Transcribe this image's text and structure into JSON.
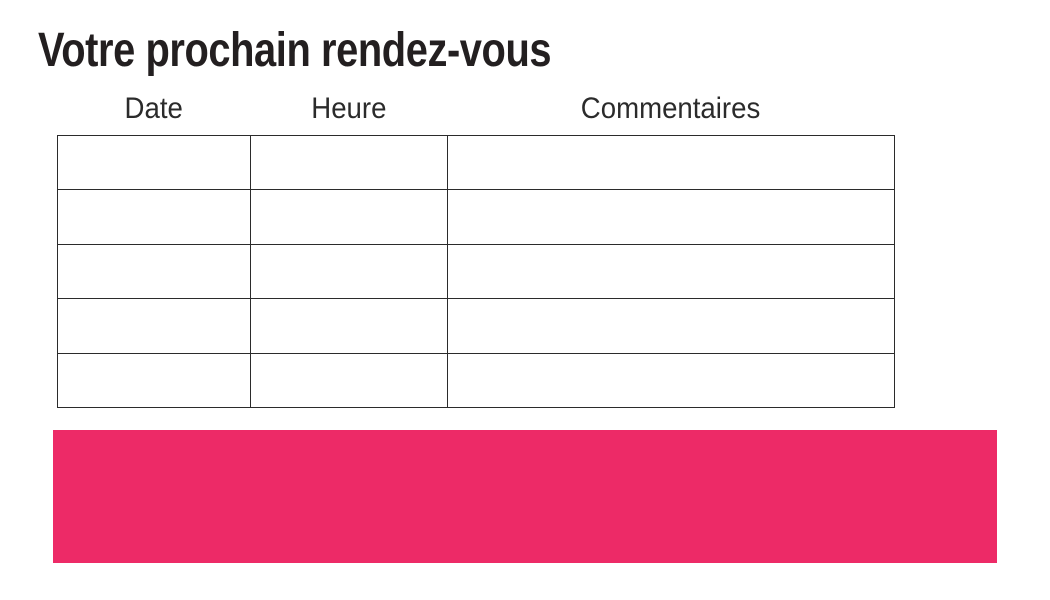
{
  "page": {
    "title": "Votre prochain rendez-vous"
  },
  "table": {
    "columns": [
      {
        "key": "date",
        "label": "Date"
      },
      {
        "key": "heure",
        "label": "Heure"
      },
      {
        "key": "commentaires",
        "label": "Commentaires"
      }
    ],
    "rows": [
      {
        "date": "",
        "heure": "",
        "commentaires": ""
      },
      {
        "date": "",
        "heure": "",
        "commentaires": ""
      },
      {
        "date": "",
        "heure": "",
        "commentaires": ""
      },
      {
        "date": "",
        "heure": "",
        "commentaires": ""
      },
      {
        "date": "",
        "heure": "",
        "commentaires": ""
      }
    ]
  },
  "banner": {
    "text": "",
    "color": "#ED2A67"
  },
  "colors": {
    "accent_pink": "#ED2A67",
    "text": "#231F20",
    "table_border": "#2B2B2B",
    "background": "#FFFFFF"
  }
}
